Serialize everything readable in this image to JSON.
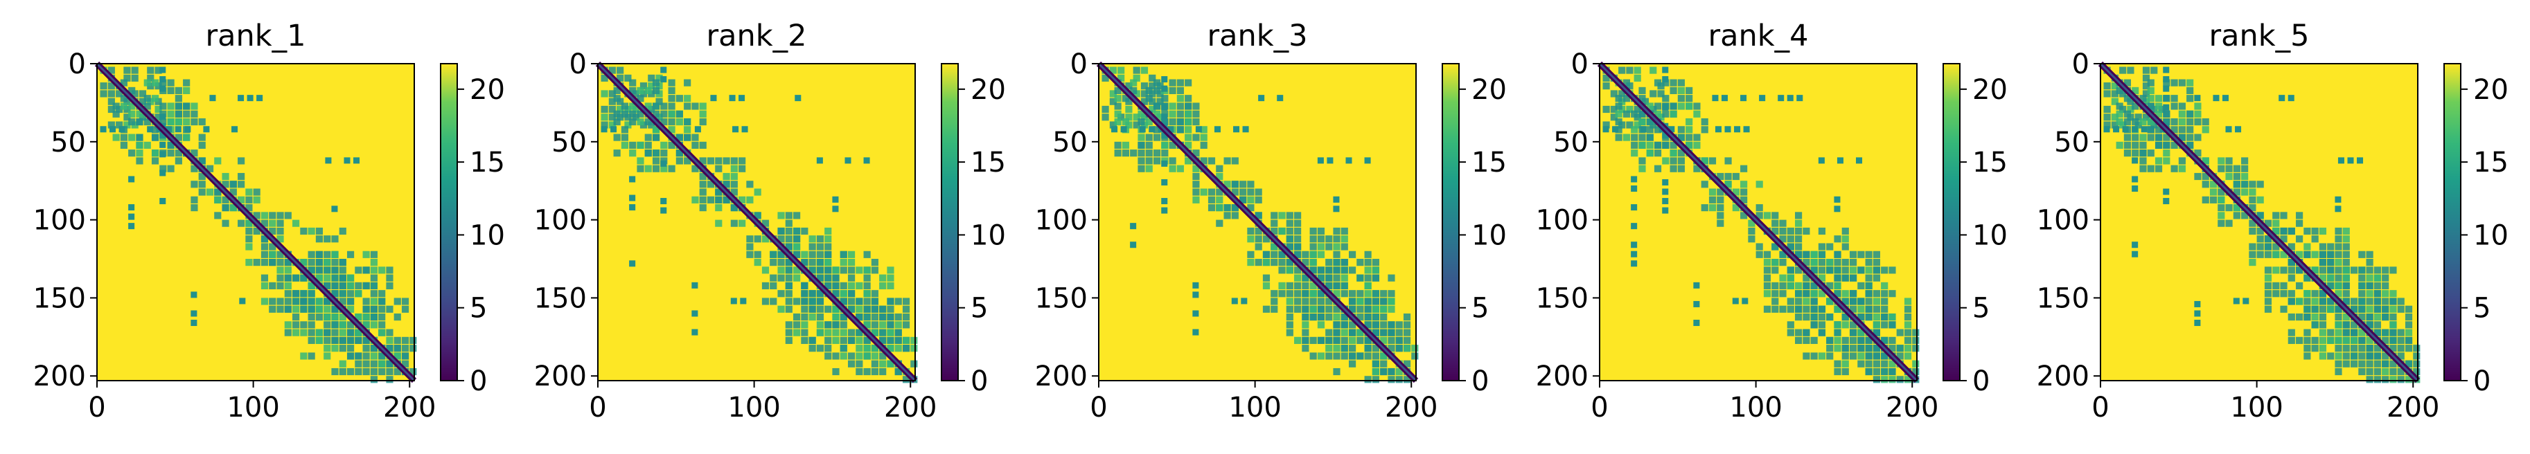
{
  "chart_data": [
    {
      "type": "heatmap",
      "title": "rank_1",
      "x_ticks": [
        0,
        100,
        200
      ],
      "y_ticks": [
        0,
        50,
        100,
        150,
        200
      ],
      "y_inverted": true,
      "extent": [
        0,
        203
      ],
      "colorbar": {
        "ticks": [
          0,
          5,
          10,
          15,
          20
        ],
        "range": [
          0,
          21.75
        ],
        "cmap": "viridis"
      }
    },
    {
      "type": "heatmap",
      "title": "rank_2",
      "x_ticks": [
        0,
        100,
        200
      ],
      "y_ticks": [
        0,
        50,
        100,
        150,
        200
      ],
      "y_inverted": true,
      "extent": [
        0,
        203
      ],
      "colorbar": {
        "ticks": [
          0,
          5,
          10,
          15,
          20
        ],
        "range": [
          0,
          21.75
        ],
        "cmap": "viridis"
      }
    },
    {
      "type": "heatmap",
      "title": "rank_3",
      "x_ticks": [
        0,
        100,
        200
      ],
      "y_ticks": [
        0,
        50,
        100,
        150,
        200
      ],
      "y_inverted": true,
      "extent": [
        0,
        203
      ],
      "colorbar": {
        "ticks": [
          0,
          5,
          10,
          15,
          20
        ],
        "range": [
          0,
          21.75
        ],
        "cmap": "viridis"
      }
    },
    {
      "type": "heatmap",
      "title": "rank_4",
      "x_ticks": [
        0,
        100,
        200
      ],
      "y_ticks": [
        0,
        50,
        100,
        150,
        200
      ],
      "y_inverted": true,
      "extent": [
        0,
        203
      ],
      "colorbar": {
        "ticks": [
          0,
          5,
          10,
          15,
          20
        ],
        "range": [
          0,
          21.75
        ],
        "cmap": "viridis"
      }
    },
    {
      "type": "heatmap",
      "title": "rank_5",
      "x_ticks": [
        0,
        100,
        200
      ],
      "y_ticks": [
        0,
        50,
        100,
        150,
        200
      ],
      "y_inverted": true,
      "extent": [
        0,
        203
      ],
      "colorbar": {
        "ticks": [
          0,
          5,
          10,
          15,
          20
        ],
        "range": [
          0,
          21.75
        ],
        "cmap": "viridis"
      }
    }
  ],
  "colors": {
    "high": "#fde725",
    "mid": "#21918c",
    "low": "#440154",
    "diagonal": "#3b528b"
  }
}
